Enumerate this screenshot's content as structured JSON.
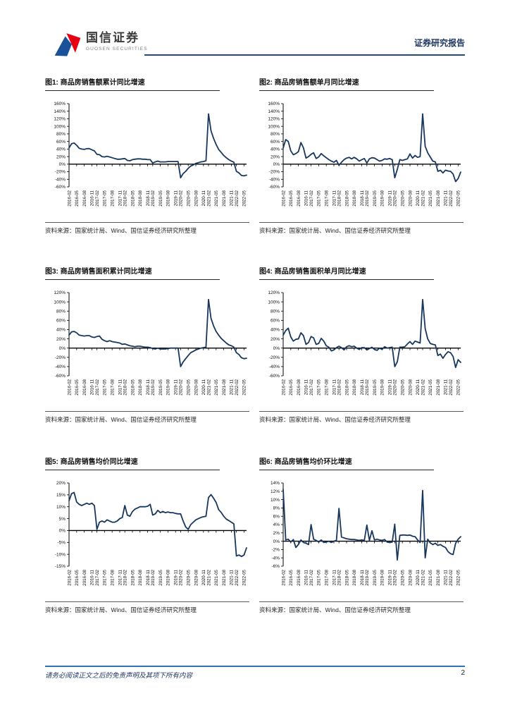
{
  "header": {
    "brand_cn": "国信证券",
    "brand_en": "GUOSEN SECURITIES",
    "report_type": "证券研究报告"
  },
  "footer": {
    "disclaimer": "请务必阅读正文之后的免责声明及其项下所有内容",
    "page_number": "2"
  },
  "colors": {
    "line": "#17375E",
    "header_rule": "#1F4E79",
    "footer_rule": "#2E74B5",
    "logo_blue": "#1B5199",
    "logo_red": "#E60012"
  },
  "months": [
    "2016-02",
    "2016-03",
    "2016-04",
    "2016-05",
    "2016-06",
    "2016-07",
    "2016-08",
    "2016-09",
    "2016-10",
    "2016-11",
    "2016-12",
    "2017-02",
    "2017-03",
    "2017-04",
    "2017-05",
    "2017-06",
    "2017-07",
    "2017-08",
    "2017-09",
    "2017-10",
    "2017-11",
    "2017-12",
    "2018-02",
    "2018-03",
    "2018-04",
    "2018-05",
    "2018-06",
    "2018-07",
    "2018-08",
    "2018-09",
    "2018-10",
    "2018-11",
    "2018-12",
    "2019-02",
    "2019-03",
    "2019-04",
    "2019-05",
    "2019-06",
    "2019-07",
    "2019-08",
    "2019-09",
    "2019-10",
    "2019-11",
    "2019-12",
    "2020-02",
    "2020-03",
    "2020-04",
    "2020-05",
    "2020-06",
    "2020-07",
    "2020-08",
    "2020-09",
    "2020-10",
    "2020-11",
    "2020-12",
    "2021-02",
    "2021-03",
    "2021-04",
    "2021-05",
    "2021-06",
    "2021-07",
    "2021-08",
    "2021-09",
    "2021-10",
    "2021-11",
    "2021-12",
    "2022-02",
    "2022-03",
    "2022-04",
    "2022-05",
    "2022-06"
  ],
  "x_tick_labels": [
    "2016-02",
    "2016-05",
    "2016-08",
    "2016-11",
    "2017-02",
    "2017-05",
    "2017-08",
    "2017-11",
    "2018-02",
    "2018-05",
    "2018-08",
    "2018-11",
    "2019-02",
    "2019-05",
    "2019-08",
    "2019-11",
    "2020-02",
    "2020-05",
    "2020-08",
    "2020-11",
    "2021-02",
    "2021-05",
    "2021-08",
    "2021-11",
    "2022-02",
    "2022-05"
  ],
  "chart_data": [
    {
      "type": "line",
      "title": "图1: 商品房销售额累计同比增速",
      "source": "资料来源：国家统计局、Wind、国信证券经济研究所整理",
      "ylim": [
        -60,
        160
      ],
      "ytick_step": 20,
      "values": [
        43,
        54,
        56,
        50,
        42,
        40,
        39,
        41,
        41,
        38,
        35,
        26,
        25,
        20,
        19,
        21,
        19,
        17,
        15,
        13,
        13,
        14,
        15,
        10,
        9,
        12,
        13,
        14,
        14,
        13,
        13,
        12,
        12,
        3,
        6,
        8,
        6,
        6,
        6,
        7,
        7,
        7,
        7,
        7,
        -36,
        -25,
        -19,
        -11,
        -5,
        -2,
        2,
        4,
        6,
        7,
        9,
        133,
        88,
        68,
        52,
        39,
        31,
        23,
        17,
        12,
        8,
        5,
        -19,
        -23,
        -30,
        -31,
        -29
      ]
    },
    {
      "type": "line",
      "title": "图2: 商品房销售额单月同比增速",
      "source": "资料来源：国家统计局、Wind、国信证券经济研究所整理",
      "ylim": [
        -60,
        160
      ],
      "ytick_step": 20,
      "values": [
        43,
        65,
        60,
        35,
        25,
        28,
        33,
        57,
        43,
        16,
        20,
        26,
        30,
        15,
        19,
        28,
        22,
        17,
        12,
        8,
        5,
        10,
        -3,
        5,
        12,
        16,
        18,
        14,
        18,
        14,
        8,
        12,
        15,
        3,
        14,
        17,
        16,
        12,
        8,
        10,
        14,
        13,
        15,
        12,
        -36,
        -14,
        12,
        10,
        12,
        14,
        27,
        16,
        23,
        18,
        20,
        133,
        47,
        30,
        19,
        8,
        6,
        -19,
        -16,
        -23,
        -16,
        -18,
        -19,
        -26,
        -46,
        -38,
        -21
      ]
    },
    {
      "type": "line",
      "title": "图3: 商品房销售面积累计同比增速",
      "source": "资料来源：国家统计局、Wind、国信证券经济研究所整理",
      "ylim": [
        -60,
        120
      ],
      "ytick_step": 20,
      "values": [
        28,
        35,
        36,
        33,
        28,
        27,
        26,
        27,
        27,
        24,
        23,
        25,
        26,
        19,
        16,
        14,
        16,
        14,
        13,
        12,
        11,
        8,
        9,
        7,
        5,
        4,
        3,
        4,
        4,
        3,
        2,
        2,
        1,
        -1,
        -2,
        0,
        -2,
        -2,
        -2,
        -1,
        0,
        0,
        0,
        0,
        -40,
        -30,
        -23,
        -16,
        -10,
        -7,
        -4,
        -2,
        0,
        1,
        2,
        105,
        64,
        48,
        36,
        28,
        21,
        16,
        11,
        7,
        5,
        2,
        -10,
        -14,
        -21,
        -23,
        -22
      ]
    },
    {
      "type": "line",
      "title": "图4: 商品房销售面积单月同比增速",
      "source": "资料来源：国家统计局、Wind、国信证券经济研究所整理",
      "ylim": [
        -60,
        120
      ],
      "ytick_step": 20,
      "values": [
        28,
        38,
        43,
        24,
        15,
        19,
        20,
        33,
        27,
        8,
        12,
        25,
        22,
        8,
        10,
        21,
        15,
        5,
        2,
        -6,
        -4,
        1,
        4,
        1,
        -4,
        3,
        5,
        3,
        4,
        0,
        -3,
        1,
        1,
        -4,
        -1,
        2,
        -3,
        -5,
        0,
        -3,
        3,
        0,
        1,
        2,
        -40,
        -30,
        2,
        2,
        3,
        9,
        14,
        8,
        15,
        13,
        11,
        105,
        42,
        20,
        10,
        8,
        7,
        -16,
        -13,
        -22,
        -14,
        -8,
        -10,
        -18,
        -42,
        -25,
        -31
      ]
    },
    {
      "type": "line",
      "title": "图5: 商品房销售均价同比增速",
      "source": "资料来源：国家统计局、Wind、国信证券经济研究所整理",
      "ylim": [
        -15,
        20
      ],
      "ytick_step": 5,
      "values": [
        12.5,
        15.5,
        16,
        12,
        11,
        10.5,
        11,
        11.5,
        11,
        11.5,
        10.5,
        0.5,
        3.5,
        4,
        3.5,
        4.5,
        4,
        3.5,
        3.5,
        4,
        5,
        5.5,
        10.5,
        6.5,
        6,
        8,
        9,
        9.5,
        10,
        10,
        10,
        10.2,
        11,
        6.5,
        7,
        8.5,
        7.5,
        8,
        7.5,
        7.8,
        7.5,
        7.5,
        7.2,
        7,
        7,
        4,
        1.5,
        0.5,
        2.5,
        3.5,
        4.5,
        5,
        5.5,
        5.8,
        6,
        13.9,
        15.1,
        13.6,
        11.8,
        8.8,
        7.6,
        6,
        4.8,
        4.2,
        3.5,
        2.8,
        -10.7,
        -10.3,
        -10.9,
        -10.3,
        -7.3
      ]
    },
    {
      "type": "line",
      "title": "图6: 商品房销售均价环比增速",
      "source": "资料来源：国家统计局、Wind、国信证券经济研究所整理",
      "ylim": [
        -6,
        14
      ],
      "ytick_step": 2,
      "values": [
        12.5,
        0.3,
        0.5,
        -0.2,
        0.4,
        -1.5,
        -0.8,
        0.3,
        -0.3,
        -0.5,
        -0.8,
        4,
        0.5,
        0.2,
        -0.2,
        0.3,
        -0.3,
        -0.2,
        0,
        -0.3,
        0,
        0.2,
        7.9,
        1,
        0.8,
        0.6,
        0.5,
        0.4,
        0.4,
        0.3,
        0.2,
        0.3,
        0.2,
        3.9,
        0.2,
        2.5,
        0.3,
        0.5,
        0.3,
        0.2,
        0.4,
        -0.2,
        -0.3,
        -0.2,
        4.1,
        -4.5,
        1.4,
        1.5,
        1.5,
        1.4,
        1.5,
        1.2,
        1.1,
        0.3,
        -0.3,
        12.2,
        -4,
        0.5,
        -0.4,
        -0.8,
        -0.5,
        -1,
        -0.8,
        -1.2,
        -1.5,
        -2.5,
        -3,
        -3.2,
        -0.5,
        0.5,
        1.1
      ]
    }
  ]
}
